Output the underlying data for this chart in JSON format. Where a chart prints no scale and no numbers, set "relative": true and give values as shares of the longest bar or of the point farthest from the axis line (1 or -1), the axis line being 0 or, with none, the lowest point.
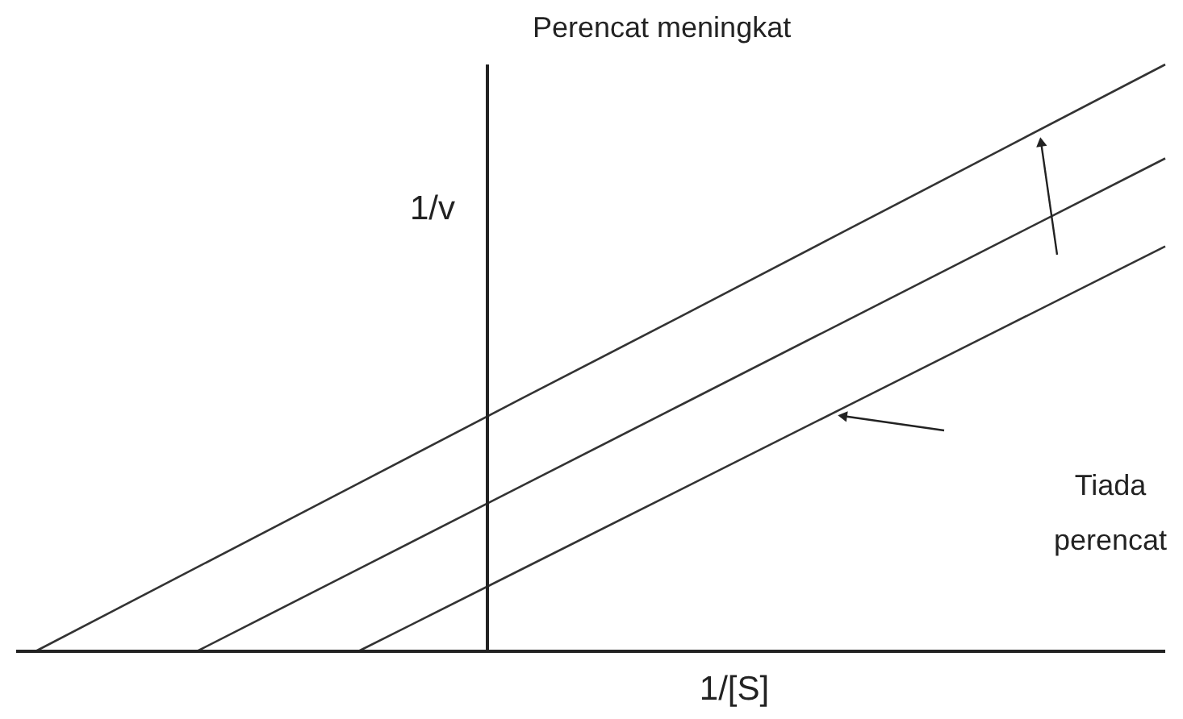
{
  "chart_data": {
    "type": "line",
    "relative": true,
    "xlabel": "1/[S]",
    "ylabel": "1/v",
    "annotations": [
      "Perencat meningkat",
      "Tiada perencat"
    ],
    "categories": [
      null,
      null,
      null,
      null,
      null,
      null,
      null,
      null
    ],
    "series": [
      {
        "color": "#333333",
        "values": [
          0,
          0.143,
          0.286,
          0.429,
          0.571,
          0.714,
          0.857,
          1.0
        ]
      },
      {
        "color": "#333333",
        "values": [
          null,
          0,
          0.14,
          0.28,
          0.42,
          0.56,
          0.7,
          0.84
        ]
      },
      {
        "color": "#333333",
        "values": [
          null,
          null,
          0,
          0.138,
          0.276,
          0.414,
          0.552,
          0.69
        ]
      }
    ]
  }
}
